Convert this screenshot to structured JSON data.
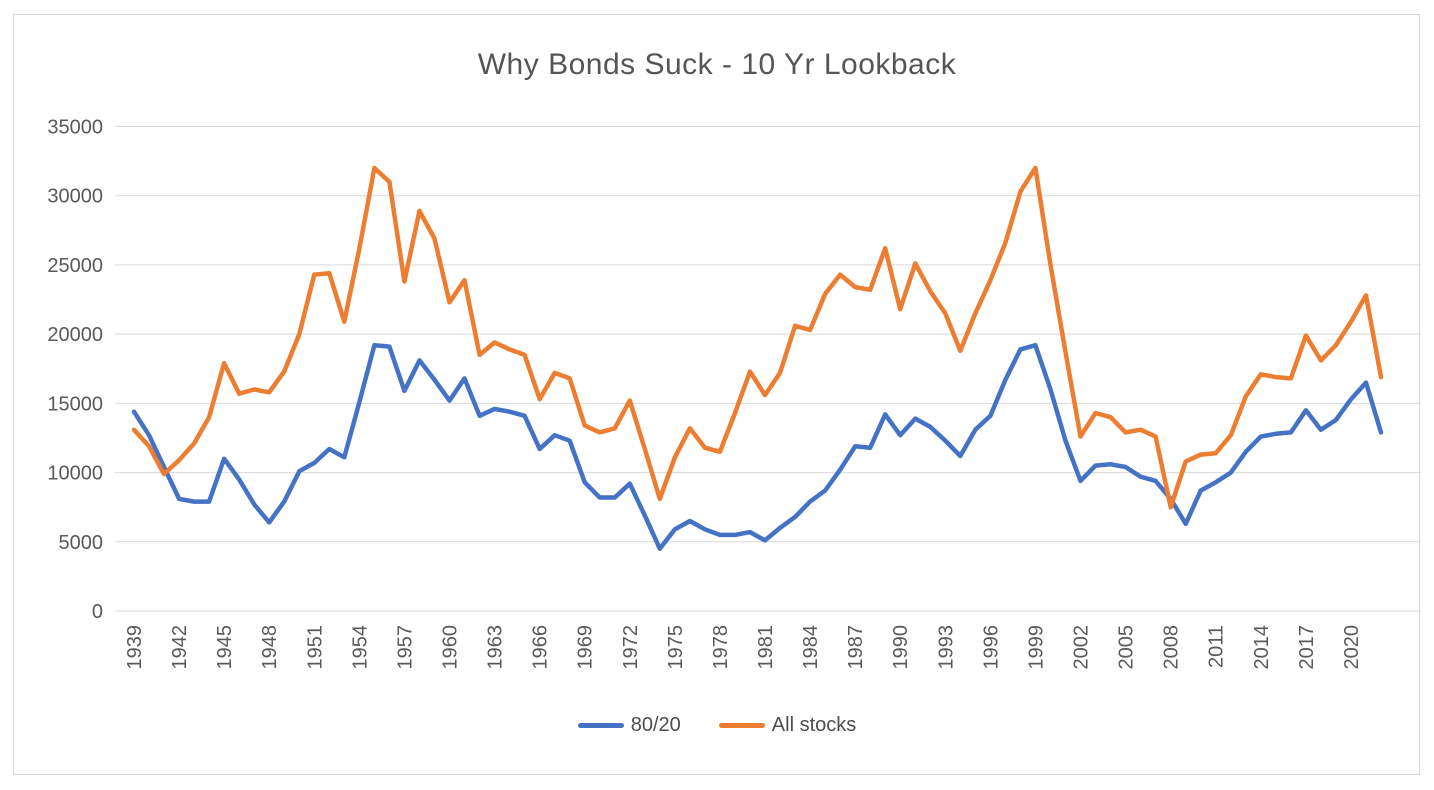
{
  "chart_data": {
    "type": "line",
    "title": "Why Bonds Suck - 10 Yr Lookback",
    "xlabel": "",
    "ylabel": "",
    "x_start_year": 1939,
    "x_end_year": 2022,
    "ylim": [
      0,
      35000
    ],
    "ytick_step": 5000,
    "ytick_labels": [
      "0",
      "5000",
      "10000",
      "15000",
      "20000",
      "25000",
      "30000",
      "35000"
    ],
    "xtick_labels": [
      "1939",
      "1942",
      "1945",
      "1948",
      "1951",
      "1954",
      "1957",
      "1960",
      "1963",
      "1966",
      "1969",
      "1972",
      "1975",
      "1978",
      "1981",
      "1984",
      "1987",
      "1990",
      "1993",
      "1996",
      "1999",
      "2002",
      "2005",
      "2008",
      "2011",
      "2014",
      "2017",
      "2020"
    ],
    "grid": "horizontal",
    "gridline_color": "#d9d9d9",
    "legend_position": "bottom",
    "series": [
      {
        "name": "80/20",
        "color": "#4472C4",
        "values": [
          14400,
          12700,
          10400,
          8100,
          7900,
          7900,
          11000,
          9500,
          7700,
          6400,
          7900,
          10100,
          10700,
          11700,
          11100,
          15100,
          19200,
          19100,
          15900,
          18100,
          16700,
          15200,
          16800,
          14100,
          14600,
          14400,
          14100,
          11700,
          12700,
          12300,
          9300,
          8200,
          8200,
          9200,
          6900,
          4500,
          5900,
          6500,
          5900,
          5500,
          5500,
          5700,
          5100,
          6000,
          6800,
          7900,
          8700,
          10200,
          11900,
          11800,
          14200,
          12700,
          13900,
          13300,
          12300,
          11200,
          13100,
          14100,
          16700,
          18900,
          19200,
          16000,
          12300,
          9400,
          10500,
          10600,
          10400,
          9700,
          9400,
          8100,
          6300,
          8700,
          9300,
          10000,
          11500,
          12600,
          12800,
          12900,
          14500,
          13100,
          13800,
          15300,
          16500,
          12900
        ]
      },
      {
        "name": "All stocks",
        "color": "#ED7D31",
        "values": [
          13100,
          11900,
          9900,
          10900,
          12100,
          14000,
          17900,
          15700,
          16000,
          15800,
          17300,
          20000,
          24300,
          24400,
          20900,
          26200,
          32000,
          31000,
          23800,
          28900,
          26900,
          22300,
          23900,
          18500,
          19400,
          18900,
          18500,
          15300,
          17200,
          16800,
          13400,
          12900,
          13200,
          15200,
          11700,
          8100,
          11100,
          13200,
          11800,
          11500,
          14300,
          17300,
          15600,
          17200,
          20600,
          20300,
          22900,
          24300,
          23400,
          23200,
          26200,
          21800,
          25100,
          23100,
          21500,
          18800,
          21500,
          23900,
          26600,
          30300,
          32000,
          25000,
          18700,
          12600,
          14300,
          14000,
          12900,
          13100,
          12600,
          7500,
          10800,
          11300,
          11400,
          12700,
          15500,
          17100,
          16900,
          16800,
          19900,
          18100,
          19200,
          20900,
          22800,
          16900
        ]
      }
    ]
  }
}
